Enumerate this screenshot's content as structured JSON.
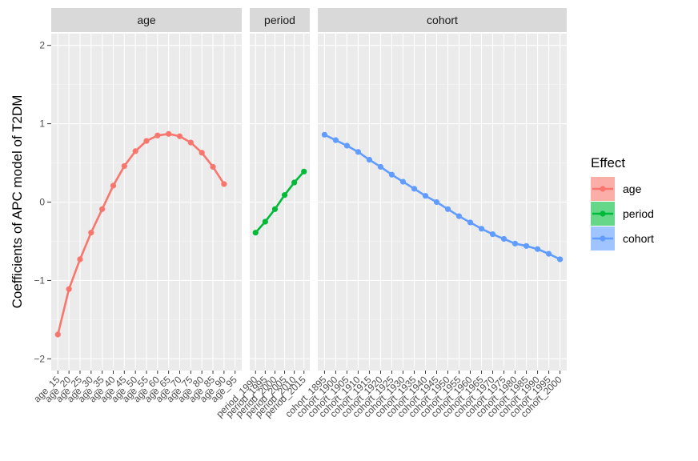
{
  "chart_data": {
    "type": "line",
    "ylabel": "Coefficients of APC model of T2DM",
    "ylim": [
      -2.15,
      2.15
    ],
    "yticks": [
      -2,
      -1,
      0,
      1,
      2
    ],
    "ytick_labels": [
      "−2",
      "−1",
      "0",
      "1",
      "2"
    ],
    "grid": true,
    "legend": {
      "title": "Effect",
      "position": "right",
      "entries": [
        "age",
        "period",
        "cohort"
      ]
    },
    "panels": [
      {
        "name": "age",
        "strip_label": "age",
        "color": "#F8766D",
        "categories": [
          "age_15",
          "age_20",
          "age_25",
          "age_30",
          "age_35",
          "age_40",
          "age_45",
          "age_50",
          "age_55",
          "age_60",
          "age_65",
          "age_70",
          "age_75",
          "age_80",
          "age_85",
          "age_90",
          "age_95"
        ],
        "values": [
          -1.69,
          -1.11,
          -0.73,
          -0.39,
          -0.09,
          0.21,
          0.46,
          0.65,
          0.78,
          0.85,
          0.87,
          0.84,
          0.76,
          0.63,
          0.45,
          0.23,
          null
        ]
      },
      {
        "name": "period",
        "strip_label": "period",
        "color": "#00BA38",
        "categories": [
          "period_1990",
          "period_1995",
          "period_2000",
          "period_2005",
          "period_2010",
          "period_2015"
        ],
        "values": [
          -0.39,
          -0.25,
          -0.09,
          0.09,
          0.25,
          0.39
        ]
      },
      {
        "name": "cohort",
        "strip_label": "cohort",
        "color": "#619CFF",
        "categories": [
          "cohort_1895",
          "cohort_1900",
          "cohort_1905",
          "cohort_1910",
          "cohort_1915",
          "cohort_1920",
          "cohort_1925",
          "cohort_1930",
          "cohort_1935",
          "cohort_1940",
          "cohort_1945",
          "cohort_1950",
          "cohort_1955",
          "cohort_1960",
          "cohort_1965",
          "cohort_1970",
          "cohort_1975",
          "cohort_1980",
          "cohort_1985",
          "cohort_1990",
          "cohort_1995",
          "cohort_2000"
        ],
        "values": [
          0.86,
          0.79,
          0.72,
          0.64,
          0.54,
          0.45,
          0.35,
          0.26,
          0.17,
          0.08,
          0.0,
          -0.09,
          -0.18,
          -0.26,
          -0.34,
          -0.41,
          -0.47,
          -0.53,
          -0.56,
          -0.6,
          -0.66,
          -0.73
        ]
      }
    ]
  }
}
